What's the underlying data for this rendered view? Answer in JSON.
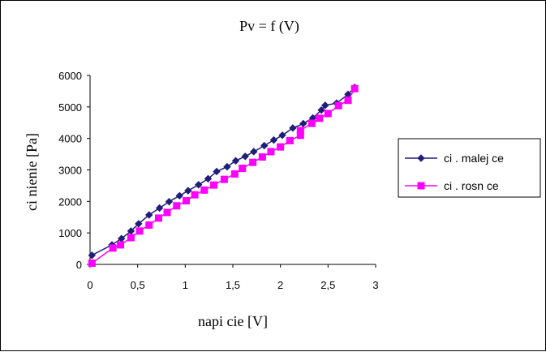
{
  "chart_data": {
    "type": "line",
    "title": "Pv = f (V)",
    "xlabel": "napi cie [V]",
    "ylabel": "ci nienie [Pa]",
    "xlim": [
      0,
      3
    ],
    "ylim": [
      0,
      6000
    ],
    "x_ticks": [
      "0",
      "0,5",
      "1",
      "1,5",
      "2",
      "2,5",
      "3"
    ],
    "y_ticks": [
      "0",
      "1000",
      "2000",
      "3000",
      "4000",
      "5000",
      "6000"
    ],
    "legend_position": "right",
    "series": [
      {
        "name": "ci . malej ce",
        "color": "#1f1f7a",
        "marker": "diamond",
        "x": [
          2.78,
          2.71,
          2.59,
          2.47,
          2.43,
          2.34,
          2.24,
          2.13,
          2.02,
          1.93,
          1.83,
          1.72,
          1.63,
          1.53,
          1.44,
          1.33,
          1.24,
          1.14,
          1.03,
          0.94,
          0.83,
          0.73,
          0.62,
          0.51,
          0.43,
          0.33,
          0.23,
          0.02
        ],
        "y": [
          5620,
          5400,
          5120,
          5050,
          4900,
          4650,
          4470,
          4330,
          4100,
          3950,
          3770,
          3580,
          3430,
          3290,
          3100,
          2950,
          2720,
          2530,
          2340,
          2180,
          1990,
          1790,
          1570,
          1290,
          1060,
          820,
          620,
          290
        ]
      },
      {
        "name": "ci . rosn ce",
        "color": "#ff00ff",
        "marker": "square",
        "x": [
          0.02,
          0.24,
          0.32,
          0.43,
          0.52,
          0.62,
          0.72,
          0.81,
          0.91,
          1.01,
          1.1,
          1.2,
          1.3,
          1.41,
          1.52,
          1.6,
          1.71,
          1.81,
          1.9,
          2.0,
          2.1,
          2.21,
          2.21,
          2.33,
          2.41,
          2.5,
          2.61,
          2.71,
          2.78
        ],
        "y": [
          40,
          520,
          620,
          850,
          1060,
          1250,
          1470,
          1650,
          1860,
          2020,
          2210,
          2360,
          2520,
          2700,
          2870,
          3050,
          3240,
          3410,
          3580,
          3730,
          3930,
          4100,
          4250,
          4480,
          4640,
          4790,
          5040,
          5210,
          5580
        ]
      }
    ]
  }
}
